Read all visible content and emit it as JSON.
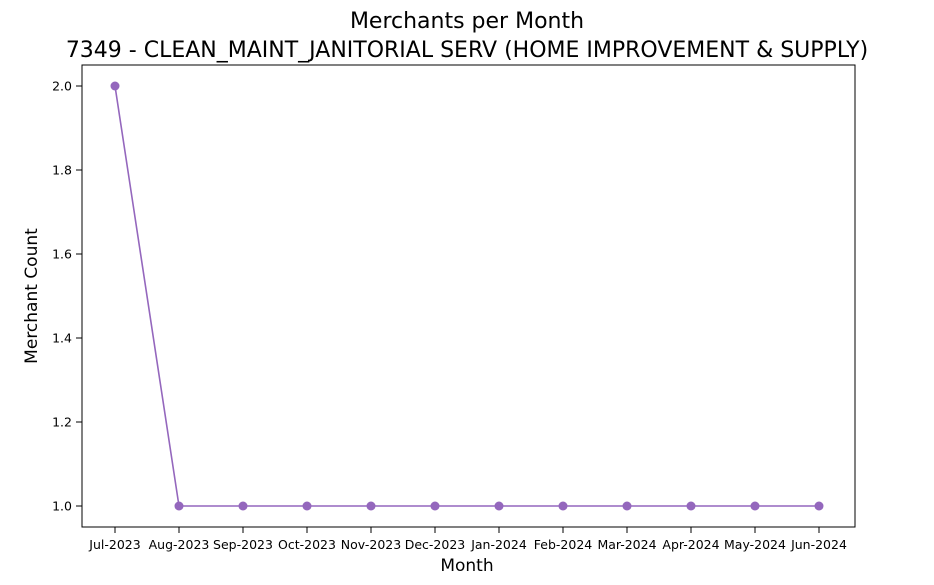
{
  "chart_data": {
    "type": "line",
    "title": "Merchants per Month",
    "subtitle": "7349 - CLEAN_MAINT_JANITORIAL SERV (HOME IMPROVEMENT & SUPPLY)",
    "xlabel": "Month",
    "ylabel": "Merchant Count",
    "categories": [
      "Jul-2023",
      "Aug-2023",
      "Sep-2023",
      "Oct-2023",
      "Nov-2023",
      "Dec-2023",
      "Jan-2024",
      "Feb-2024",
      "Mar-2024",
      "Apr-2024",
      "May-2024",
      "Jun-2024"
    ],
    "series": [
      {
        "values": [
          2,
          1,
          1,
          1,
          1,
          1,
          1,
          1,
          1,
          1,
          1,
          1
        ],
        "color": "#9467bd",
        "marker": "circle"
      }
    ],
    "yticks": [
      "1.0",
      "1.2",
      "1.4",
      "1.6",
      "1.8",
      "2.0"
    ],
    "ylim": [
      0.95,
      2.05
    ],
    "grid": false,
    "legend": "none"
  }
}
